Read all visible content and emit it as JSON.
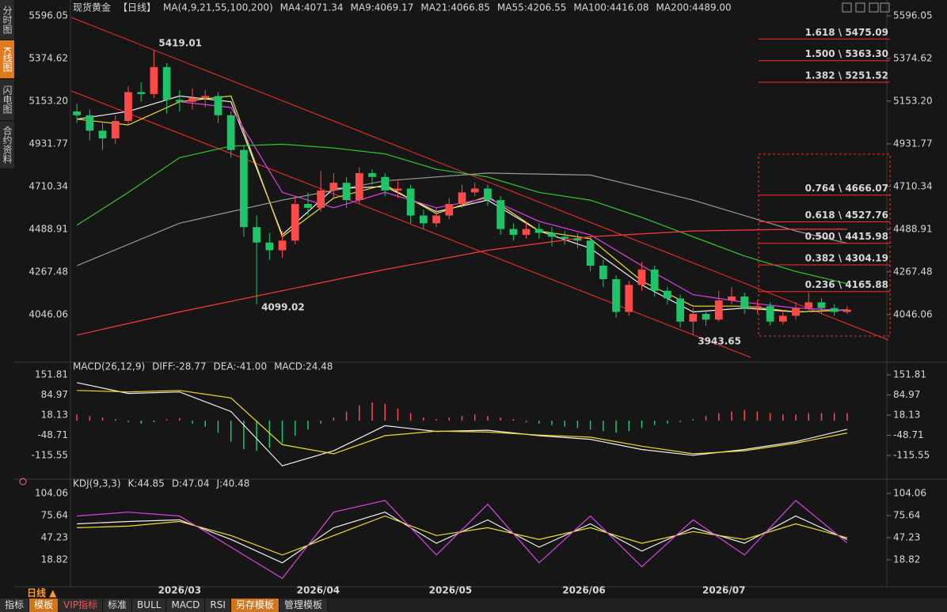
{
  "ui": {
    "sidebar": [
      "分时图",
      "K线图",
      "闪电图",
      "合约资料"
    ],
    "period_button": "日线 ▲",
    "toolbar": [
      "指标",
      "模板",
      "VIP指标",
      "标准",
      "BULL",
      "MACD",
      "RSI",
      "另存模板",
      "管理模板"
    ]
  },
  "chart_data": [
    {
      "type": "candlestick",
      "title": "现货黄金",
      "period": "【日线】",
      "indicator": "MA(4,9,21,55,100,200)",
      "up_color": "#ff4a4a",
      "down_color": "#1fc46a",
      "xlim": [
        -0.5,
        60.5
      ],
      "xticks": [
        {
          "value": 8,
          "label": "2026/03"
        },
        {
          "value": 18.8,
          "label": "2026/04"
        },
        {
          "value": 29.1,
          "label": "2026/05"
        },
        {
          "value": 39.5,
          "label": "2026/06"
        },
        {
          "value": 50.4,
          "label": "2026/07"
        }
      ],
      "ylim": [
        3812,
        5645
      ],
      "yticks": [
        5596.05,
        5374.62,
        {
          "value": 5153.2,
          "label": "5153.20"
        },
        4931.77,
        4710.34,
        4488.91,
        4267.48,
        4046.06
      ],
      "open": [
        5100,
        5080,
        5000,
        4960,
        5050,
        5200,
        5190,
        5330,
        5160,
        5150,
        5170,
        5180,
        5080,
        4900,
        4500,
        4420,
        4380,
        4430,
        4620,
        4600,
        4690,
        4730,
        4640,
        4780,
        4760,
        4690,
        4700,
        4560,
        4520,
        4560,
        4620,
        4680,
        4700,
        4640,
        4490,
        4460,
        4490,
        4470,
        4450,
        4440,
        4430,
        4300,
        4230,
        4060,
        4200,
        4280,
        4170,
        4130,
        4010,
        4050,
        4020,
        4120,
        4140,
        4080,
        4090,
        4010,
        4040,
        4080,
        4110,
        4080,
        4060
      ],
      "high": [
        5140,
        5110,
        5040,
        5080,
        5230,
        5250,
        5419.01,
        5350,
        5210,
        5220,
        5210,
        5200,
        5100,
        4920,
        4560,
        4470,
        4480,
        4660,
        4680,
        4790,
        4780,
        4760,
        4810,
        4800,
        4780,
        4740,
        4720,
        4590,
        4600,
        4650,
        4720,
        4730,
        4720,
        4660,
        4520,
        4530,
        4520,
        4500,
        4480,
        4470,
        4450,
        4330,
        4250,
        4220,
        4320,
        4300,
        4190,
        4150,
        4080,
        4070,
        4170,
        4190,
        4160,
        4120,
        4110,
        4070,
        4110,
        4160,
        4130,
        4100,
        4090
      ],
      "low": [
        5040,
        4950,
        4900,
        4930,
        5030,
        5150,
        5170,
        5090,
        5100,
        5110,
        5120,
        5040,
        4860,
        4450,
        4099.02,
        4330,
        4340,
        4410,
        4560,
        4580,
        4650,
        4600,
        4620,
        4720,
        4660,
        4650,
        4520,
        4490,
        4500,
        4540,
        4600,
        4660,
        4610,
        4460,
        4430,
        4440,
        4440,
        4400,
        4410,
        4390,
        4270,
        4190,
        4030,
        4040,
        4170,
        4140,
        4100,
        3980,
        3943.65,
        3990,
        4010,
        4100,
        4050,
        4050,
        3990,
        3995,
        4020,
        4060,
        4050,
        4040,
        4050
      ],
      "close": [
        5080,
        5000,
        4960,
        5050,
        5200,
        5190,
        5330,
        5160,
        5150,
        5170,
        5180,
        5080,
        4900,
        4500,
        4420,
        4380,
        4430,
        4620,
        4600,
        4690,
        4730,
        4640,
        4780,
        4760,
        4690,
        4700,
        4560,
        4520,
        4560,
        4620,
        4680,
        4700,
        4640,
        4490,
        4460,
        4490,
        4470,
        4450,
        4440,
        4430,
        4300,
        4230,
        4060,
        4200,
        4280,
        4170,
        4130,
        4010,
        4050,
        4020,
        4120,
        4140,
        4080,
        4090,
        4010,
        4040,
        4080,
        4110,
        4080,
        4060,
        4072
      ],
      "series": [
        {
          "name": "MA4:4071.34",
          "color": "#f0f0f0",
          "x": [
            0,
            4,
            8,
            12,
            16,
            20,
            24,
            28,
            32,
            36,
            40,
            44,
            48,
            52,
            56,
            60
          ],
          "values": [
            5060,
            5100,
            5180,
            5150,
            4460,
            4700,
            4710,
            4580,
            4640,
            4480,
            4390,
            4200,
            4060,
            4080,
            4060,
            4071.34
          ]
        },
        {
          "name": "MA9:4069.17",
          "color": "#e8e030",
          "x": [
            0,
            4,
            8,
            12,
            16,
            20,
            24,
            28,
            32,
            36,
            40,
            44,
            48,
            52,
            56,
            60
          ],
          "values": [
            5060,
            5030,
            5150,
            5180,
            4450,
            4650,
            4720,
            4570,
            4660,
            4480,
            4440,
            4220,
            4090,
            4090,
            4060,
            4069.17
          ]
        },
        {
          "name": "MA21:4066.85",
          "color": "#e040e8",
          "x": [
            8,
            12,
            16,
            20,
            24,
            28,
            32,
            36,
            40,
            44,
            48,
            52,
            56,
            60
          ],
          "values": [
            5150,
            5120,
            4680,
            4600,
            4680,
            4600,
            4650,
            4530,
            4460,
            4300,
            4150,
            4110,
            4080,
            4066.85
          ]
        },
        {
          "name": "MA55:4206.55",
          "color": "#30c830",
          "x": [
            0,
            4,
            8,
            12,
            16,
            20,
            24,
            28,
            32,
            36,
            40,
            44,
            48,
            52,
            56,
            60
          ],
          "values": [
            4510,
            4680,
            4860,
            4920,
            4930,
            4910,
            4880,
            4800,
            4760,
            4680,
            4640,
            4550,
            4450,
            4350,
            4270,
            4206.55
          ]
        },
        {
          "name": "MA100:4416.08",
          "color": "#9a9a9a",
          "x": [
            0,
            8,
            16,
            24,
            32,
            40,
            48,
            56,
            60
          ],
          "values": [
            4300,
            4520,
            4640,
            4740,
            4780,
            4770,
            4640,
            4480,
            4416.08
          ]
        },
        {
          "name": "MA200:4489.00",
          "color": "#ff3a3a",
          "x": [
            0,
            8,
            16,
            24,
            32,
            40,
            48,
            56,
            60
          ],
          "values": [
            3940,
            4060,
            4170,
            4280,
            4380,
            4450,
            4480,
            4489,
            4489
          ]
        }
      ],
      "fib_color": "#ff2a2a",
      "fib_levels": [
        {
          "value": 5475.09,
          "label": "1.618 \\ 5475.09"
        },
        {
          "value": 5363.3,
          "label": "1.500 \\ 5363.30"
        },
        {
          "value": 5251.52,
          "label": "1.382 \\ 5251.52"
        },
        {
          "value": 4666.07,
          "label": "0.764 \\ 4666.07"
        },
        {
          "value": 4527.76,
          "label": "0.618 \\ 4527.76"
        },
        {
          "value": 4415.98,
          "label": "0.500 \\ 4415.98"
        },
        {
          "value": 4304.19,
          "label": "0.382 \\ 4304.19"
        },
        {
          "value": 4165.88,
          "label": "0.236 \\ 4165.88"
        }
      ]
    },
    {
      "type": "macd",
      "title": "MACD(26,12,9)",
      "ylim": [
        -178.5,
        183.3
      ],
      "yticks": [
        151.81,
        84.97,
        18.13,
        -48.71,
        -115.55
      ],
      "series": [
        {
          "name": "DIFF:-28.77",
          "color": "#f0f0f0",
          "x": [
            0,
            4,
            8,
            12,
            16,
            20,
            24,
            28,
            32,
            36,
            40,
            44,
            48,
            52,
            56,
            60
          ],
          "values": [
            126,
            90,
            95,
            30,
            -150,
            -100,
            -17,
            -36,
            -32,
            -50,
            -62,
            -96,
            -115,
            -96,
            -70,
            -28.77
          ]
        },
        {
          "name": "DEA:-41.00",
          "color": "#e8e030",
          "x": [
            0,
            4,
            8,
            12,
            16,
            20,
            24,
            28,
            32,
            36,
            40,
            44,
            48,
            52,
            56,
            60
          ],
          "values": [
            100,
            95,
            100,
            75,
            -80,
            -110,
            -50,
            -35,
            -38,
            -48,
            -55,
            -85,
            -110,
            -100,
            -75,
            -41
          ]
        }
      ],
      "histogram": {
        "name": "MACD:24.48",
        "color": "#e040e8",
        "up_color": "#ff4a4a",
        "down_color": "#1fc46a",
        "values": [
          20,
          15,
          10,
          5,
          -5,
          -10,
          -5,
          5,
          8,
          -10,
          -20,
          -40,
          -70,
          -95,
          -100,
          -90,
          -75,
          -50,
          -30,
          -10,
          10,
          30,
          50,
          60,
          55,
          40,
          25,
          10,
          5,
          10,
          15,
          20,
          15,
          10,
          5,
          -5,
          -10,
          -15,
          -20,
          -25,
          -30,
          -35,
          -40,
          -35,
          -25,
          -15,
          -10,
          -5,
          5,
          15,
          25,
          30,
          35,
          30,
          25,
          20,
          20,
          25,
          25,
          25,
          24.48
        ]
      }
    },
    {
      "type": "line",
      "title": "KDJ(9,3,3)",
      "ylim": [
        -13.65,
        116.2
      ],
      "yticks": [
        104.06,
        75.64,
        47.23,
        18.82
      ],
      "series": [
        {
          "name": "K:44.85",
          "color": "#f0f0f0",
          "x": [
            0,
            4,
            8,
            12,
            16,
            20,
            24,
            28,
            32,
            36,
            40,
            44,
            48,
            52,
            56,
            60
          ],
          "values": [
            65,
            68,
            70,
            45,
            15,
            60,
            80,
            40,
            70,
            35,
            65,
            30,
            60,
            40,
            75,
            44.85
          ]
        },
        {
          "name": "D:47.04",
          "color": "#e8e030",
          "x": [
            0,
            4,
            8,
            12,
            16,
            20,
            24,
            28,
            32,
            36,
            40,
            44,
            48,
            52,
            56,
            60
          ],
          "values": [
            60,
            62,
            68,
            50,
            25,
            50,
            75,
            50,
            60,
            45,
            60,
            40,
            55,
            45,
            65,
            47.04
          ]
        },
        {
          "name": "J:40.48",
          "color": "#e040e8",
          "x": [
            0,
            4,
            8,
            12,
            16,
            20,
            24,
            28,
            32,
            36,
            40,
            44,
            48,
            52,
            56,
            60
          ],
          "values": [
            75,
            80,
            75,
            35,
            -5,
            80,
            95,
            25,
            90,
            15,
            75,
            10,
            70,
            25,
            95,
            40.48
          ]
        }
      ]
    }
  ]
}
